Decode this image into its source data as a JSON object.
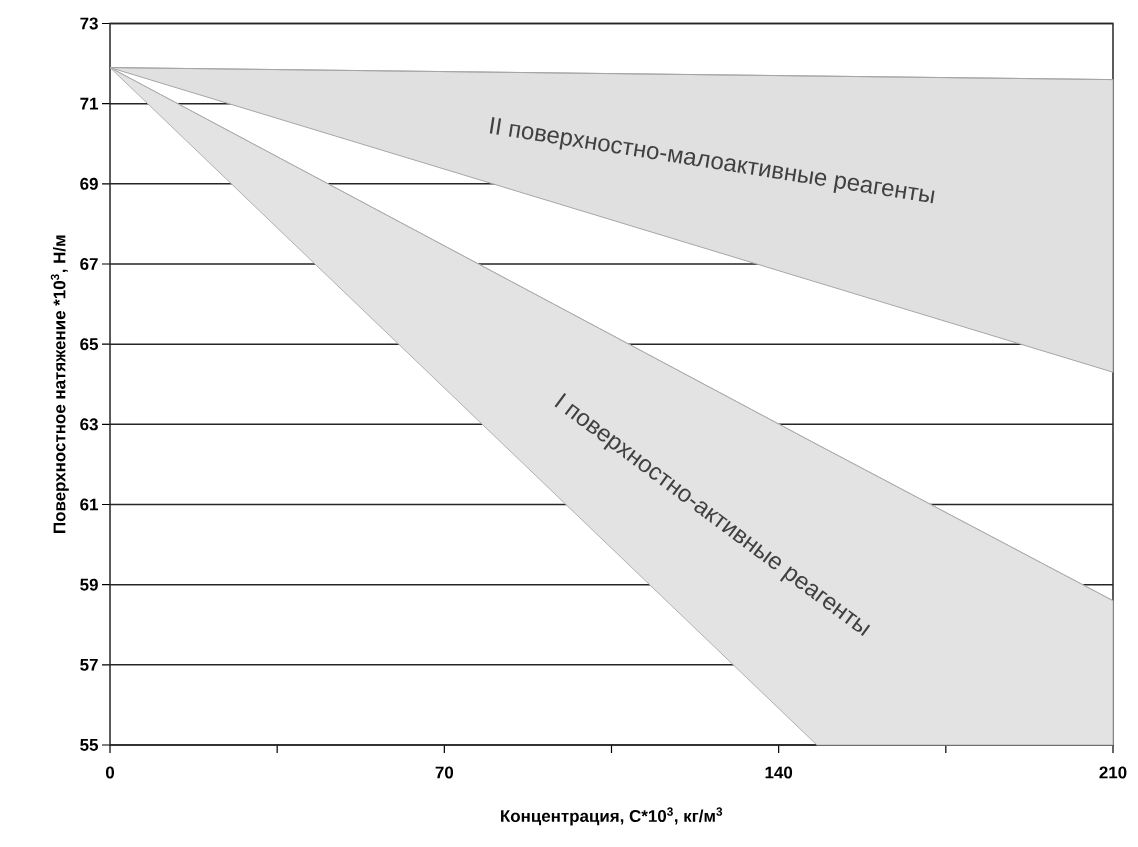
{
  "chart_data": {
    "type": "line",
    "xlabel": "Концентрация, С*10$^{3}$, кг/м$^{3}$",
    "ylabel": "Поверхностное натяжение  *10$^{3}$, Н/м",
    "xlim": [
      0,
      210
    ],
    "ylim": [
      55,
      73
    ],
    "xticks": [
      0,
      {
        "value": 35,
        "label": null
      },
      70,
      {
        "value": 105,
        "label": null
      },
      140,
      {
        "value": 175,
        "label": null
      },
      210
    ],
    "yticks": [
      55,
      57,
      59,
      61,
      63,
      65,
      67,
      69,
      71,
      73
    ],
    "grid": "y",
    "marker": "none",
    "series": [
      {
        "name": "II поверхностно-малоактивные реагенты",
        "color": "#a6a6a6",
        "x": [
          0,
          210
        ],
        "values": [
          71.9,
          71.6
        ],
        "lower": [
          71.9,
          64.3
        ],
        "upper": [
          71.9,
          71.6
        ]
      },
      {
        "name": "I поверхностно-активные реагенты",
        "color": "#b0b0b0",
        "x": [
          0,
          148,
          210
        ],
        "values": [
          71.9,
          62.5,
          58.6
        ],
        "lower": [
          71.9,
          55,
          55
        ],
        "upper": [
          71.9,
          62.5,
          58.6
        ]
      }
    ]
  }
}
